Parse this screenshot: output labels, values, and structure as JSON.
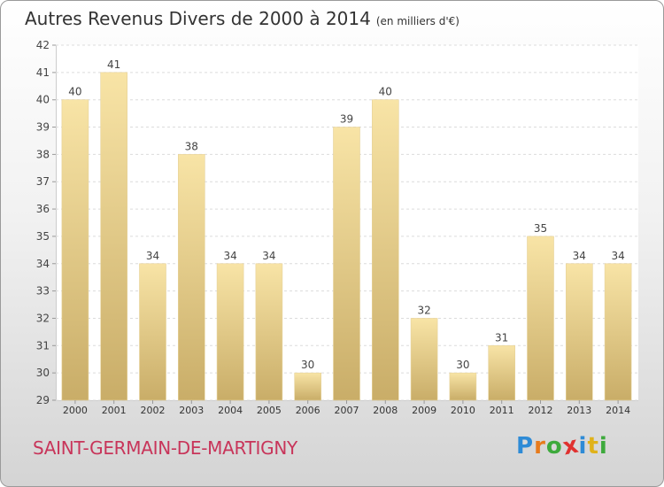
{
  "chart_data": {
    "type": "bar",
    "title": "Autres Revenus Divers de 2000 à 2014",
    "unit_note": "(en milliers d'€)",
    "categories": [
      "2000",
      "2001",
      "2002",
      "2003",
      "2004",
      "2005",
      "2006",
      "2007",
      "2008",
      "2009",
      "2010",
      "2011",
      "2012",
      "2013",
      "2014"
    ],
    "values": [
      40,
      41,
      34,
      38,
      34,
      34,
      30,
      39,
      40,
      32,
      30,
      31,
      35,
      34,
      34
    ],
    "ylim": [
      29,
      42
    ],
    "yticks": [
      29,
      30,
      31,
      32,
      33,
      34,
      35,
      36,
      37,
      38,
      39,
      40,
      41,
      42
    ],
    "grid": true,
    "bar_color_top": "#f8e4a6",
    "bar_color_bottom": "#c9ad68"
  },
  "footer": {
    "town": "SAINT-GERMAIN-DE-MARTIGNY",
    "logo_letters": [
      "P",
      "r",
      "o",
      "x",
      "i",
      "t",
      "i"
    ],
    "logo_colors": [
      "#2e8bd6",
      "#e77b1c",
      "#3daa3c",
      "#e0312f",
      "#2e8bd6",
      "#e0b21a",
      "#3daa3c"
    ]
  }
}
